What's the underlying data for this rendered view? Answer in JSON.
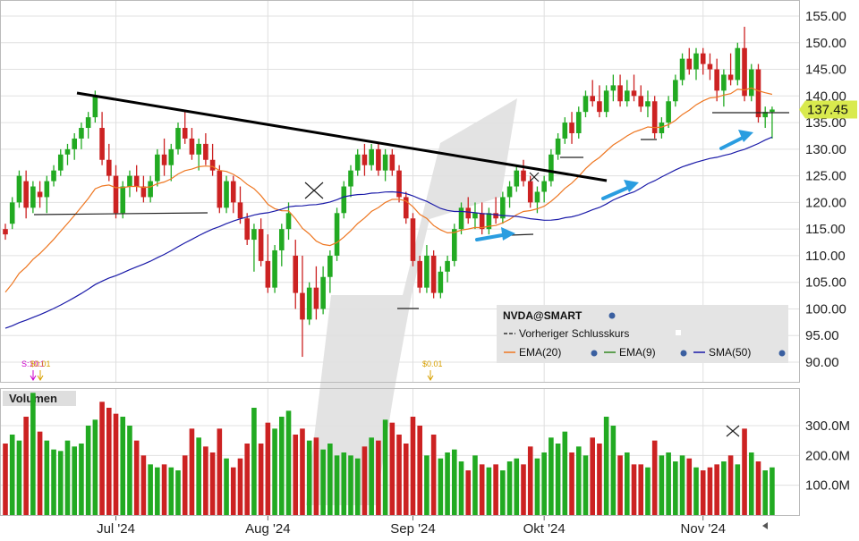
{
  "colors": {
    "up": "#22aa22",
    "down": "#cc2222",
    "ema20": "#ee7722",
    "ema9": "#338822",
    "sma50": "#1a1aa8",
    "trend": "#000000",
    "arrow": "#2a9de0",
    "last_price_tag": "#d9ea4e",
    "grid": "#e0e0e0",
    "watermark": "#d8d8d8"
  },
  "legend": {
    "symbol": "NVDA@SMART",
    "items": [
      {
        "label": "Vorheriger Schlusskurs",
        "color": "#333333",
        "style": "dashed"
      },
      {
        "label": "EMA(20)",
        "color": "#ee7722",
        "style": "solid"
      },
      {
        "label": "EMA(9)",
        "color": "#338822",
        "style": "solid"
      },
      {
        "label": "SMA(50)",
        "color": "#1a1aa8",
        "style": "solid"
      }
    ]
  },
  "volume_label": "Volumen",
  "last_price": "137.45",
  "dividend_labels": [
    "S:10:1",
    "$0.01",
    "$0.01"
  ],
  "chart_data": {
    "type": "candlestick",
    "price_axis": {
      "ticks": [
        "155.00",
        "150.00",
        "145.00",
        "140.00",
        "135.00",
        "130.00",
        "125.00",
        "120.00",
        "115.00",
        "110.00",
        "105.00",
        "100.00",
        "95.00",
        "90.00"
      ],
      "ylim": [
        86,
        157
      ]
    },
    "volume_axis": {
      "ticks": [
        "300.0M",
        "200.0M",
        "100.0M"
      ],
      "ylim": [
        0,
        420
      ]
    },
    "x_ticks": [
      {
        "label": "Jul '24",
        "index": 16
      },
      {
        "label": "Aug '24",
        "index": 38
      },
      {
        "label": "Sep '24",
        "index": 59
      },
      {
        "label": "Okt '24",
        "index": 78
      },
      {
        "label": "Nov '24",
        "index": 101
      }
    ],
    "candles": [
      [
        115,
        116,
        113,
        114,
        240
      ],
      [
        116,
        121,
        115,
        120,
        270
      ],
      [
        120,
        126,
        119,
        125,
        250
      ],
      [
        124,
        126,
        117,
        119,
        330
      ],
      [
        119,
        124,
        118,
        123,
        410
      ],
      [
        122,
        124,
        119,
        121,
        280
      ],
      [
        121,
        125,
        118,
        124,
        250
      ],
      [
        124,
        127,
        123,
        126,
        220
      ],
      [
        126,
        130,
        125,
        129,
        215
      ],
      [
        129,
        131,
        127,
        130,
        250
      ],
      [
        130,
        133,
        128,
        132,
        230
      ],
      [
        132,
        135,
        130,
        134,
        240
      ],
      [
        134,
        137,
        132,
        136,
        300
      ],
      [
        136,
        141,
        135,
        140,
        320
      ],
      [
        134,
        137,
        127,
        128,
        380
      ],
      [
        128,
        131,
        124,
        125,
        360
      ],
      [
        125,
        127,
        117,
        118,
        340
      ],
      [
        118,
        124,
        117,
        123,
        330
      ],
      [
        123,
        126,
        121,
        125,
        300
      ],
      [
        125,
        127,
        122,
        123,
        250
      ],
      [
        123,
        125,
        120,
        121,
        200
      ],
      [
        121,
        125,
        120,
        124,
        170
      ],
      [
        124,
        130,
        123,
        129,
        160
      ],
      [
        129,
        132,
        125,
        127,
        170
      ],
      [
        127,
        131,
        124,
        130,
        160
      ],
      [
        130,
        135,
        129,
        134,
        150
      ],
      [
        134,
        137,
        131,
        132,
        200
      ],
      [
        132,
        134,
        128,
        129,
        290
      ],
      [
        129,
        132,
        126,
        131,
        260
      ],
      [
        131,
        133,
        127,
        128,
        230
      ],
      [
        128,
        131,
        125,
        126,
        210
      ],
      [
        126,
        127,
        118,
        119,
        290
      ],
      [
        119,
        125,
        118,
        124,
        190
      ],
      [
        124,
        125,
        118,
        120,
        160
      ],
      [
        120,
        123,
        116,
        117,
        190
      ],
      [
        117,
        118,
        112,
        113,
        240
      ],
      [
        113,
        116,
        107,
        115,
        360
      ],
      [
        115,
        117,
        108,
        109,
        240
      ],
      [
        109,
        114,
        103,
        104,
        310
      ],
      [
        104,
        112,
        103,
        111,
        290
      ],
      [
        111,
        116,
        108,
        115,
        330
      ],
      [
        115,
        120,
        113,
        118,
        350
      ],
      [
        110,
        113,
        100,
        103,
        270
      ],
      [
        103,
        110,
        91,
        98,
        290
      ],
      [
        98,
        105,
        97,
        104,
        250
      ],
      [
        104,
        108,
        98,
        100,
        260
      ],
      [
        100,
        108,
        99,
        106,
        220
      ],
      [
        106,
        111,
        103,
        110,
        240
      ],
      [
        110,
        119,
        109,
        118,
        200
      ],
      [
        118,
        124,
        117,
        123,
        210
      ],
      [
        123,
        127,
        121,
        126,
        200
      ],
      [
        126,
        130,
        125,
        129,
        190
      ],
      [
        129,
        131,
        125,
        127,
        230
      ],
      [
        127,
        131,
        126,
        130,
        260
      ],
      [
        130,
        131,
        125,
        126,
        250
      ],
      [
        126,
        130,
        124,
        129,
        320
      ],
      [
        129,
        130,
        125,
        126,
        310
      ],
      [
        126,
        127,
        120,
        121,
        270
      ],
      [
        121,
        122,
        116,
        117,
        240
      ],
      [
        117,
        118,
        108,
        109,
        330
      ],
      [
        109,
        110,
        103,
        104,
        300
      ],
      [
        104,
        112,
        103,
        110,
        200
      ],
      [
        110,
        111,
        102,
        103,
        270
      ],
      [
        103,
        108,
        102,
        107,
        190
      ],
      [
        107,
        110,
        105,
        109,
        210
      ],
      [
        109,
        116,
        108,
        115,
        220
      ],
      [
        115,
        120,
        114,
        119,
        180
      ],
      [
        119,
        121,
        116,
        117,
        150
      ],
      [
        117,
        120,
        115,
        118,
        200
      ],
      [
        118,
        120,
        114,
        115,
        170
      ],
      [
        115,
        119,
        114,
        118,
        160
      ],
      [
        118,
        121,
        116,
        117,
        170
      ],
      [
        117,
        122,
        116,
        121,
        150
      ],
      [
        121,
        124,
        119,
        123,
        180
      ],
      [
        123,
        127,
        122,
        126,
        190
      ],
      [
        126,
        128,
        123,
        124,
        170
      ],
      [
        124,
        125,
        119,
        120,
        230
      ],
      [
        120,
        123,
        118,
        122,
        190
      ],
      [
        122,
        125,
        120,
        124,
        210
      ],
      [
        124,
        130,
        123,
        129,
        260
      ],
      [
        129,
        133,
        128,
        132,
        240
      ],
      [
        132,
        136,
        131,
        135,
        280
      ],
      [
        135,
        137,
        131,
        133,
        210
      ],
      [
        133,
        138,
        132,
        137,
        230
      ],
      [
        137,
        141,
        136,
        140,
        200
      ],
      [
        140,
        143,
        138,
        139,
        260
      ],
      [
        139,
        142,
        136,
        137,
        240
      ],
      [
        137,
        142,
        136,
        141,
        330
      ],
      [
        141,
        144,
        139,
        142,
        300
      ],
      [
        142,
        144,
        138,
        139,
        200
      ],
      [
        139,
        143,
        138,
        141,
        210
      ],
      [
        141,
        144,
        139,
        140,
        170
      ],
      [
        140,
        142,
        137,
        138,
        170
      ],
      [
        138,
        141,
        136,
        139,
        160
      ],
      [
        139,
        140,
        132,
        133,
        250
      ],
      [
        133,
        136,
        132,
        135,
        200
      ],
      [
        135,
        140,
        134,
        139,
        210
      ],
      [
        139,
        144,
        138,
        143,
        180
      ],
      [
        143,
        148,
        142,
        147,
        200
      ],
      [
        147,
        149,
        144,
        145,
        190
      ],
      [
        145,
        149,
        143,
        148,
        160
      ],
      [
        148,
        149,
        144,
        146,
        150
      ],
      [
        146,
        148,
        143,
        145,
        160
      ],
      [
        145,
        147,
        139,
        141,
        170
      ],
      [
        141,
        145,
        138,
        144,
        180
      ],
      [
        144,
        148,
        142,
        143,
        200
      ],
      [
        143,
        150,
        142,
        149,
        170
      ],
      [
        149,
        153,
        139,
        140,
        290
      ],
      [
        140,
        146,
        139,
        145,
        210
      ],
      [
        145,
        146,
        135,
        136,
        180
      ],
      [
        136,
        138,
        134,
        137,
        150
      ],
      [
        137,
        138,
        132,
        137.45,
        160
      ]
    ],
    "indicators": {
      "ema20_hint": "computed from closes",
      "ema9_hint": "computed from closes",
      "sma50_hint": "computed from closes"
    }
  }
}
